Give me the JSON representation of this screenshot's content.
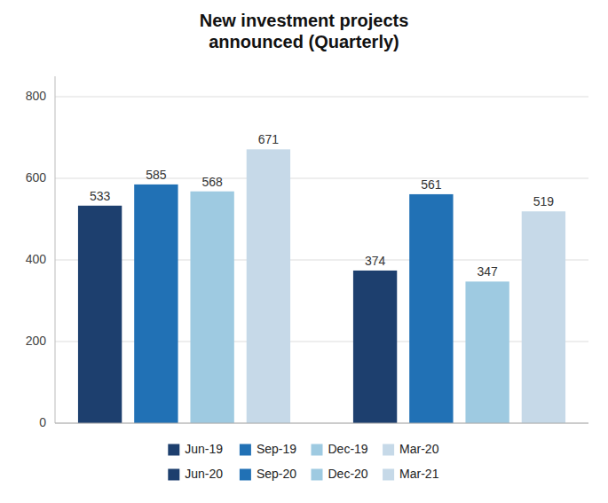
{
  "chart_data": {
    "type": "bar",
    "title": "New investment projects\nannounced (Quarterly)",
    "categories": [
      "Jun-19",
      "Sep-19",
      "Dec-19",
      "Mar-20",
      "Jun-20",
      "Sep-20",
      "Dec-20",
      "Mar-21"
    ],
    "values": [
      533,
      585,
      568,
      671,
      374,
      561,
      347,
      519
    ],
    "colors": [
      "#1d3f6e",
      "#2171b5",
      "#9ecae1",
      "#c6d9e8",
      "#1d3f6e",
      "#2171b5",
      "#9ecae1",
      "#c6d9e8"
    ],
    "ylim": [
      0,
      850
    ],
    "yticks": [
      0,
      200,
      400,
      600,
      800
    ],
    "grid": true,
    "data_labels": true,
    "tick_labels": "y",
    "legend": "bottom"
  }
}
